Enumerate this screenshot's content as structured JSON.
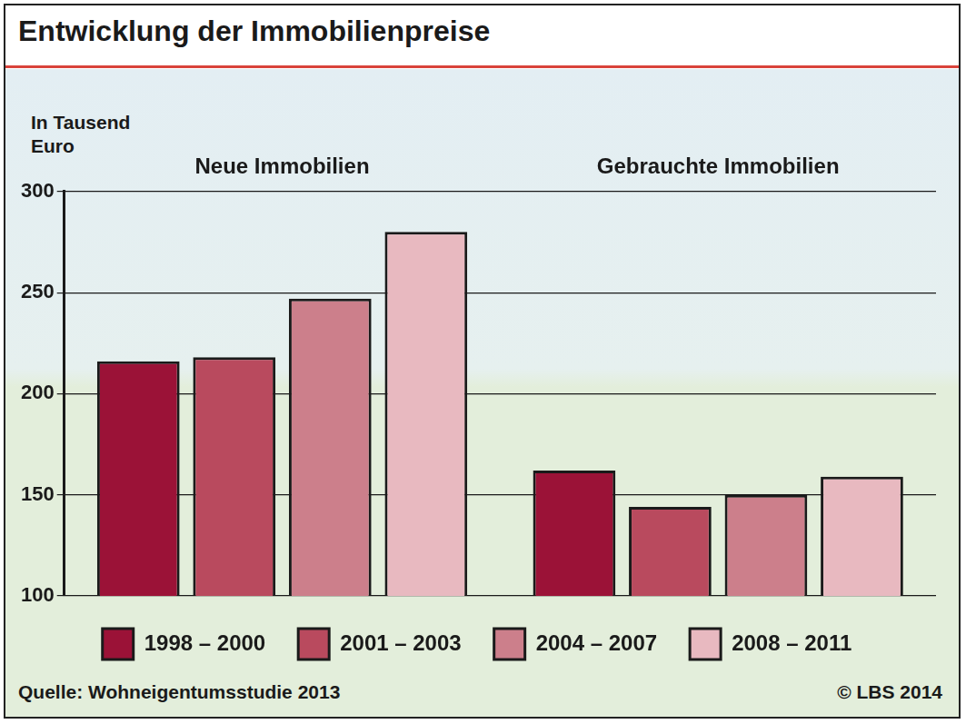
{
  "chart_data": {
    "type": "bar",
    "title": "Entwicklung der Immobilienpreise",
    "y_label": "In Tausend Euro",
    "annotations": [
      "Quelle: Wohneigentumsstudie 2013",
      "© LBS 2014"
    ],
    "categories": [
      "Neue Immobilien",
      "Gebrauchte Immobilien"
    ],
    "series": [
      {
        "name": "1998 – 2000",
        "color": "#9b1237",
        "values": [
          216,
          162
        ]
      },
      {
        "name": "2001 – 2003",
        "color": "#b94a5e",
        "values": [
          218,
          144
        ]
      },
      {
        "name": "2004 – 2007",
        "color": "#cc7f8b",
        "values": [
          247,
          150
        ]
      },
      {
        "name": "2008 – 2011",
        "color": "#e8b9c0",
        "values": [
          280,
          159
        ]
      }
    ],
    "ylim": [
      100,
      300
    ],
    "yticks": [
      100,
      150,
      200,
      250,
      300
    ],
    "grid": true,
    "legend": "bottom",
    "data_labels": true
  }
}
